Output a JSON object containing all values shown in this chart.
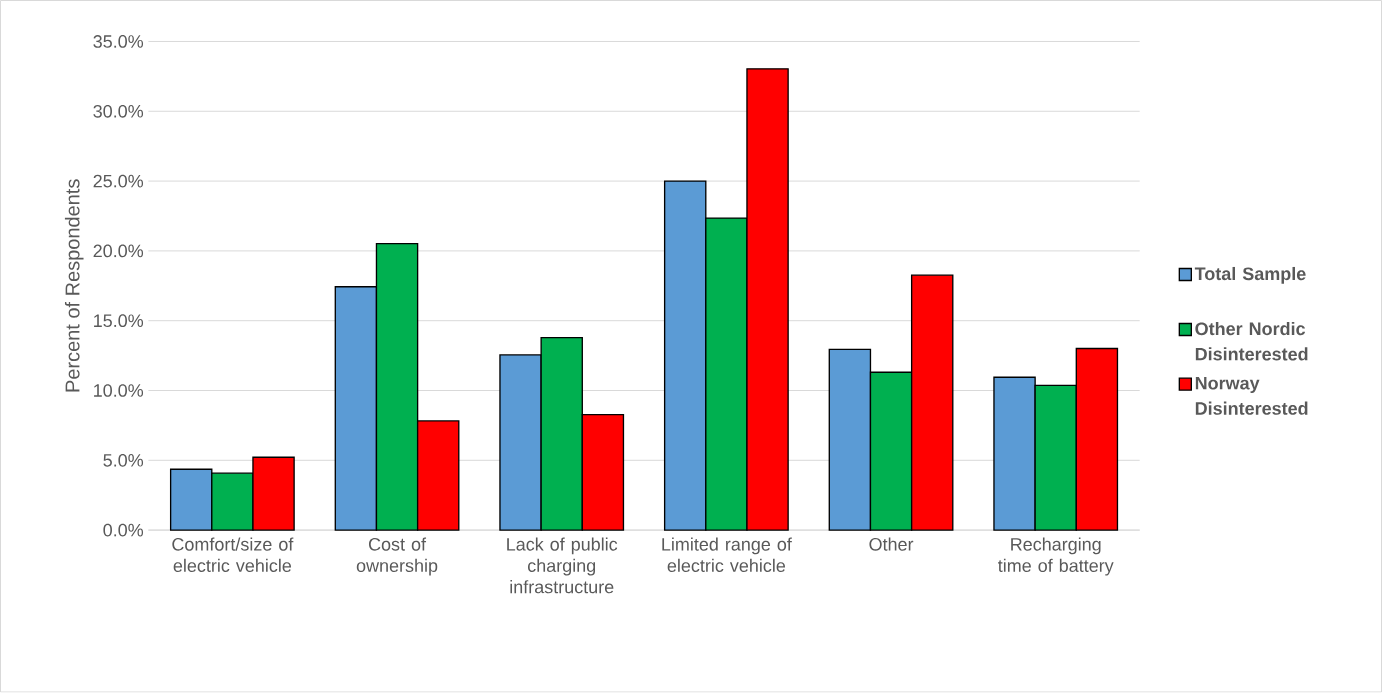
{
  "chart_data": {
    "type": "bar",
    "ylabel": "Percent of Respondents",
    "categories": [
      "Comfort/size of electric vehicle",
      "Cost of ownership",
      "Lack of public charging infrastructure",
      "Limited range of electric vehicle",
      "Other",
      "Recharging time of battery"
    ],
    "series": [
      {
        "name": "Total Sample",
        "color": "#5b9bd5",
        "values": [
          4.36,
          17.43,
          12.55,
          25.0,
          12.94,
          10.95
        ]
      },
      {
        "name": "Other Nordic Disinterested",
        "color": "#00b050",
        "values": [
          4.08,
          20.52,
          13.79,
          22.35,
          11.31,
          10.37
        ]
      },
      {
        "name": "Norway Disinterested",
        "color": "#ff0000",
        "values": [
          5.22,
          7.82,
          8.27,
          33.04,
          18.26,
          13.01
        ]
      }
    ],
    "ylim": [
      0,
      35
    ],
    "yticks": [
      {
        "value": 0,
        "label": "0.0%"
      },
      {
        "value": 5,
        "label": "5.0%"
      },
      {
        "value": 10,
        "label": "10.0%"
      },
      {
        "value": 15,
        "label": "15.0%"
      },
      {
        "value": 20,
        "label": "20.0%"
      },
      {
        "value": 25,
        "label": "25.0%"
      },
      {
        "value": 30,
        "label": "30.0%"
      },
      {
        "value": 35,
        "label": "35.0%"
      }
    ],
    "grid": "y",
    "legend": "right"
  }
}
